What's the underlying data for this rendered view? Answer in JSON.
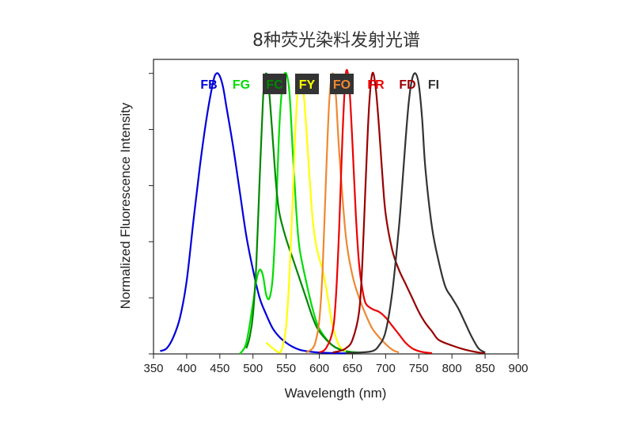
{
  "chart_data": {
    "type": "line",
    "title": "8种荧光染料发射光谱",
    "xlabel": "Wavelength (nm)",
    "ylabel": "Normalized Fluorescence Intensity",
    "xlim": [
      350,
      900
    ],
    "ylim": [
      0,
      1.05
    ],
    "xticks": [
      "350",
      "400",
      "450",
      "500",
      "550",
      "600",
      "650",
      "700",
      "750",
      "800",
      "850",
      "900"
    ],
    "yticks": [
      0,
      0.2,
      0.4,
      0.6,
      0.8,
      1.0
    ],
    "y_tick_labels_shown": false,
    "grid": false,
    "legend_position": "top",
    "series": [
      {
        "name": "FB",
        "color": "#0000dd",
        "boxed": false,
        "x": [
          360,
          370,
          380,
          390,
          400,
          410,
          420,
          430,
          440,
          445,
          450,
          455,
          460,
          470,
          480,
          490,
          500,
          510,
          520,
          530,
          540,
          550,
          560,
          570,
          580,
          590,
          600,
          620,
          640
        ],
        "y": [
          0.01,
          0.02,
          0.06,
          0.13,
          0.26,
          0.47,
          0.67,
          0.84,
          0.97,
          1.0,
          0.99,
          0.95,
          0.88,
          0.74,
          0.58,
          0.42,
          0.3,
          0.2,
          0.14,
          0.09,
          0.06,
          0.04,
          0.025,
          0.015,
          0.01,
          0.007,
          0.005,
          0.003,
          0.002
        ]
      },
      {
        "name": "FG",
        "color": "#00dd00",
        "boxed": false,
        "x": [
          480,
          490,
          500,
          505,
          510,
          515,
          520,
          525,
          530,
          535,
          540,
          545,
          550,
          555,
          560,
          565,
          570,
          580,
          590,
          600,
          620,
          640,
          660
        ],
        "y": [
          0.0,
          0.04,
          0.18,
          0.26,
          0.3,
          0.28,
          0.21,
          0.2,
          0.28,
          0.52,
          0.82,
          0.97,
          1.0,
          0.93,
          0.72,
          0.52,
          0.38,
          0.26,
          0.16,
          0.09,
          0.03,
          0.01,
          0.005
        ]
      },
      {
        "name": "FC",
        "color": "#008800",
        "boxed": true,
        "x": [
          490,
          495,
          500,
          505,
          510,
          515,
          518,
          522,
          525,
          530,
          535,
          540,
          550,
          560,
          570,
          580,
          590,
          600,
          620,
          640,
          660
        ],
        "y": [
          0.02,
          0.06,
          0.14,
          0.32,
          0.62,
          0.9,
          0.99,
          0.99,
          0.92,
          0.76,
          0.6,
          0.5,
          0.41,
          0.34,
          0.27,
          0.2,
          0.13,
          0.08,
          0.03,
          0.01,
          0.003
        ]
      },
      {
        "name": "FY",
        "color": "#ffff00",
        "boxed": true,
        "x": [
          520,
          530,
          540,
          545,
          550,
          555,
          560,
          565,
          570,
          575,
          580,
          585,
          590,
          595,
          600,
          605,
          610,
          615,
          620,
          630,
          640
        ],
        "y": [
          0.04,
          0.02,
          0.005,
          0.03,
          0.1,
          0.28,
          0.56,
          0.85,
          0.99,
          0.96,
          0.82,
          0.64,
          0.48,
          0.39,
          0.34,
          0.3,
          0.24,
          0.17,
          0.1,
          0.03,
          0.01
        ]
      },
      {
        "name": "FO",
        "color": "#ee8833",
        "boxed": true,
        "x": [
          580,
          590,
          595,
          600,
          605,
          610,
          615,
          620,
          625,
          630,
          640,
          650,
          660,
          670,
          680,
          690,
          700,
          710,
          720
        ],
        "y": [
          0.005,
          0.02,
          0.05,
          0.12,
          0.3,
          0.62,
          0.9,
          1.0,
          0.92,
          0.72,
          0.42,
          0.28,
          0.2,
          0.14,
          0.09,
          0.06,
          0.035,
          0.015,
          0.005
        ]
      },
      {
        "name": "FR",
        "color": "#ee0000",
        "boxed": false,
        "x": [
          600,
          610,
          620,
          625,
          630,
          635,
          640,
          645,
          650,
          655,
          660,
          665,
          670,
          680,
          690,
          700,
          710,
          720,
          730,
          740,
          750,
          760,
          770
        ],
        "y": [
          0.005,
          0.02,
          0.08,
          0.2,
          0.45,
          0.78,
          1.0,
          0.96,
          0.75,
          0.5,
          0.32,
          0.23,
          0.18,
          0.16,
          0.15,
          0.13,
          0.1,
          0.07,
          0.04,
          0.02,
          0.01,
          0.005,
          0.003
        ]
      },
      {
        "name": "FD",
        "color": "#990000",
        "boxed": false,
        "x": [
          620,
          630,
          640,
          650,
          660,
          665,
          670,
          675,
          680,
          685,
          690,
          695,
          700,
          710,
          720,
          730,
          740,
          750,
          760,
          770,
          780,
          800,
          820,
          840,
          850
        ],
        "y": [
          0.005,
          0.01,
          0.02,
          0.05,
          0.15,
          0.33,
          0.62,
          0.88,
          1.0,
          0.95,
          0.81,
          0.64,
          0.5,
          0.37,
          0.3,
          0.25,
          0.2,
          0.15,
          0.11,
          0.08,
          0.05,
          0.03,
          0.015,
          0.005,
          0.002
        ]
      },
      {
        "name": "FI",
        "color": "#333333",
        "boxed": false,
        "x": [
          640,
          660,
          680,
          690,
          700,
          710,
          720,
          725,
          730,
          735,
          740,
          745,
          750,
          755,
          760,
          770,
          780,
          790,
          800,
          810,
          820,
          830,
          840,
          850
        ],
        "y": [
          0.003,
          0.005,
          0.01,
          0.03,
          0.08,
          0.22,
          0.45,
          0.6,
          0.76,
          0.9,
          0.98,
          1.0,
          0.96,
          0.84,
          0.66,
          0.45,
          0.33,
          0.24,
          0.2,
          0.16,
          0.11,
          0.06,
          0.02,
          0.005
        ]
      }
    ]
  }
}
